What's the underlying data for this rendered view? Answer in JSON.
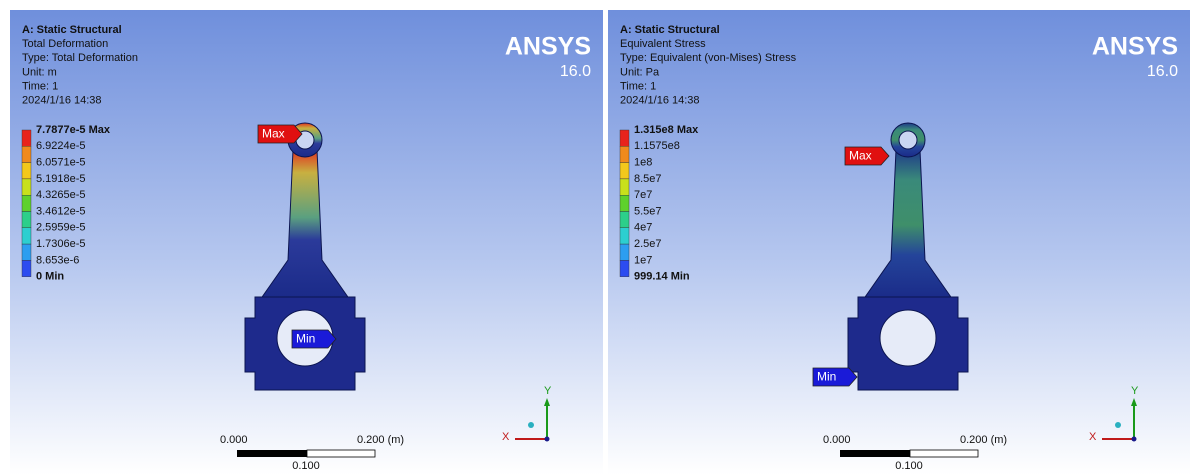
{
  "panels": [
    {
      "header": {
        "title": "A: Static Structural",
        "lines": [
          "Total Deformation",
          "Type: Total Deformation",
          "Unit: m",
          "Time: 1",
          "2024/1/16 14:38"
        ]
      },
      "brand": {
        "name": "ANSYS",
        "version": "16.0"
      },
      "legend": [
        "7.7877e-5 Max",
        "6.9224e-5",
        "6.0571e-5",
        "5.1918e-5",
        "4.3265e-5",
        "3.4612e-5",
        "2.5959e-5",
        "1.7306e-5",
        "8.653e-6",
        "0 Min"
      ],
      "probes": {
        "max": "Max",
        "min": "Min"
      },
      "scale": {
        "start": "0.000",
        "end": "0.200 (m)",
        "mid": "0.100"
      },
      "axes": {
        "y": "Y",
        "x": "X"
      }
    },
    {
      "header": {
        "title": "A: Static Structural",
        "lines": [
          "Equivalent Stress",
          "Type: Equivalent (von-Mises) Stress",
          "Unit: Pa",
          "Time: 1",
          "2024/1/16 14:38"
        ]
      },
      "brand": {
        "name": "ANSYS",
        "version": "16.0"
      },
      "legend": [
        "1.315e8 Max",
        "1.1575e8",
        "1e8",
        "8.5e7",
        "7e7",
        "5.5e7",
        "4e7",
        "2.5e7",
        "1e7",
        "999.14 Min"
      ],
      "probes": {
        "max": "Max",
        "min": "Min"
      },
      "scale": {
        "start": "0.000",
        "end": "0.200 (m)",
        "mid": "0.100"
      },
      "axes": {
        "y": "Y",
        "x": "X"
      }
    }
  ]
}
